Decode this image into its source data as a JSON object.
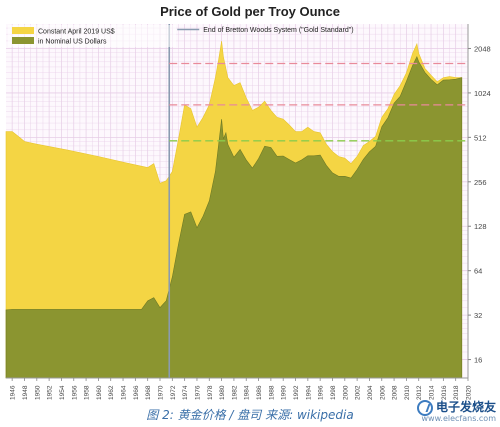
{
  "chart_data": {
    "type": "area",
    "title": "Price of Gold per Troy Ounce",
    "y_scale": "log2",
    "ylim": [
      12,
      3000
    ],
    "xlim": [
      1945,
      2020
    ],
    "y_ticks": [
      16,
      32,
      64,
      128,
      256,
      512,
      1024,
      2048
    ],
    "x_ticks": [
      1946,
      1948,
      1950,
      1952,
      1954,
      1956,
      1958,
      1960,
      1962,
      1964,
      1966,
      1968,
      1970,
      1972,
      1974,
      1976,
      1978,
      1980,
      1982,
      1984,
      1986,
      1988,
      1990,
      1992,
      1994,
      1996,
      1998,
      2000,
      2002,
      2004,
      2006,
      2008,
      2010,
      2012,
      2014,
      2016,
      2018,
      2020
    ],
    "legend_position": "top-left",
    "grid": true,
    "colors": {
      "real": "#f4d544",
      "nominal": "#8b9530",
      "grid": "#e6cde6",
      "event_line": "#8a9bb0",
      "ref_pink": "#e98a9a",
      "ref_green": "#8ccc4c"
    },
    "series": [
      {
        "name": "Constant April 2019 US$",
        "x": [
          1945,
          1946,
          1947,
          1948,
          1950,
          1955,
          1960,
          1965,
          1968,
          1969,
          1970,
          1971,
          1972,
          1973,
          1974,
          1975,
          1976,
          1977,
          1978,
          1979,
          1979.5,
          1980,
          1980.3,
          1980.7,
          1981,
          1982,
          1983,
          1984,
          1985,
          1986,
          1987,
          1988,
          1989,
          1990,
          1991,
          1992,
          1993,
          1994,
          1995,
          1996,
          1997,
          1998,
          1999,
          2000,
          2001,
          2002,
          2003,
          2004,
          2005,
          2006,
          2007,
          2008,
          2009,
          2010,
          2011,
          2011.7,
          2012,
          2013,
          2014,
          2015,
          2016,
          2017,
          2018,
          2019
        ],
        "values": [
          560,
          560,
          520,
          480,
          460,
          420,
          380,
          340,
          320,
          340,
          250,
          260,
          300,
          500,
          850,
          800,
          600,
          700,
          850,
          1300,
          1700,
          2300,
          1800,
          1500,
          1300,
          1150,
          1200,
          950,
          780,
          820,
          900,
          780,
          700,
          680,
          620,
          560,
          560,
          600,
          560,
          550,
          460,
          410,
          380,
          370,
          340,
          380,
          450,
          480,
          520,
          700,
          800,
          1000,
          1150,
          1400,
          1900,
          2200,
          1900,
          1500,
          1350,
          1220,
          1300,
          1320,
          1300,
          1300
        ]
      },
      {
        "name": "in Nominal US Dollars",
        "x": [
          1945,
          1946,
          1950,
          1955,
          1960,
          1965,
          1967,
          1968,
          1969,
          1970,
          1971,
          1972,
          1973,
          1974,
          1975,
          1976,
          1977,
          1978,
          1979,
          1979.5,
          1980,
          1980.3,
          1980.7,
          1981,
          1982,
          1983,
          1984,
          1985,
          1986,
          1987,
          1988,
          1989,
          1990,
          1991,
          1992,
          1993,
          1994,
          1995,
          1996,
          1997,
          1998,
          1999,
          2000,
          2001,
          2002,
          2003,
          2004,
          2005,
          2006,
          2007,
          2008,
          2009,
          2010,
          2011,
          2011.7,
          2012,
          2013,
          2014,
          2015,
          2016,
          2017,
          2018,
          2019
        ],
        "values": [
          34.7,
          35,
          35,
          35,
          35,
          35,
          35,
          40,
          42,
          36,
          40,
          58,
          97,
          154,
          160,
          125,
          150,
          190,
          300,
          450,
          680,
          500,
          550,
          460,
          375,
          424,
          360,
          317,
          368,
          446,
          437,
          381,
          383,
          362,
          343,
          360,
          384,
          384,
          388,
          331,
          294,
          279,
          279,
          271,
          310,
          363,
          409,
          445,
          604,
          695,
          872,
          972,
          1225,
          1570,
          1800,
          1670,
          1410,
          1266,
          1160,
          1250,
          1257,
          1268,
          1300
        ]
      }
    ],
    "annotations": {
      "event_label": "End of Bretton Woods System (\"Gold Standard\")",
      "event_x": 1971.5,
      "ref_lines": [
        {
          "y": 1620,
          "color": "pink",
          "from_x": 1971.5
        },
        {
          "y": 850,
          "color": "pink",
          "from_x": 1971.5
        },
        {
          "y": 485,
          "color": "green",
          "from_x": 1971.5
        }
      ]
    }
  },
  "caption": "图 2: 黄金价格 / 盘司  来源: wikipedia",
  "watermark": {
    "brand": "电子发烧友",
    "url": "www.elecfans.com"
  }
}
